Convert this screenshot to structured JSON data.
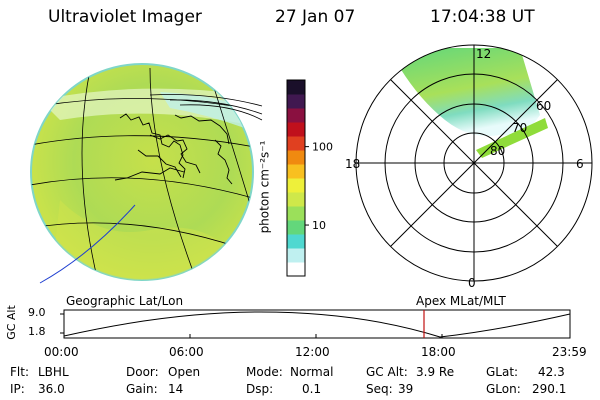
{
  "header": {
    "title": "Ultraviolet Imager",
    "date": "27 Jan 07",
    "time": "17:04:38 UT"
  },
  "colorbar": {
    "unit_label": "photon cm⁻²s⁻¹",
    "ticks": [
      {
        "value": 10,
        "label": "10"
      },
      {
        "value": 100,
        "label": "100"
      }
    ],
    "colors": [
      "#ffffff",
      "#bff0f0",
      "#4fd8d0",
      "#63d77b",
      "#9be05a",
      "#cfe84a",
      "#eef03a",
      "#f8c020",
      "#f08a10",
      "#e04020",
      "#c0101c",
      "#8a1040",
      "#401850",
      "#1a0f2a"
    ]
  },
  "polar_plot": {
    "mlt_labels": {
      "top": "12",
      "left": "18",
      "right": "6",
      "bottom": "0"
    },
    "lat_labels": [
      "60",
      "70",
      "80"
    ]
  },
  "timeline": {
    "left_label": "Geographic Lat/Lon",
    "right_label": "Apex MLat/MLT",
    "ylabel": "GC Alt",
    "yticks": [
      "9.0",
      "1.8"
    ],
    "xticks": [
      "00:00",
      "06:00",
      "12:00",
      "18:00",
      "23:59"
    ],
    "marker_time": "17:04:38"
  },
  "footer": {
    "row1": {
      "flt_label": "Flt:",
      "flt_value": "LBHL",
      "door_label": "Door:",
      "door_value": "Open",
      "mode_label": "Mode:",
      "mode_value": "Normal",
      "gcalt_label": "GC Alt:",
      "gcalt_value": "3.9 Re",
      "glat_label": "GLat:",
      "glat_value": "42.3"
    },
    "row2": {
      "ip_label": "IP:",
      "ip_value": "36.0",
      "gain_label": "Gain:",
      "gain_value": "14",
      "dsp_label": "Dsp:",
      "dsp_value": "0.1",
      "seq_label": "Seq:",
      "seq_value": "39",
      "glon_label": "GLon:",
      "glon_value": "290.1"
    }
  },
  "colors": {
    "disk_base": "#b9dc4e",
    "grid_line": "#000000",
    "track_line": "#1f3fd0",
    "marker_line": "#c01010"
  }
}
